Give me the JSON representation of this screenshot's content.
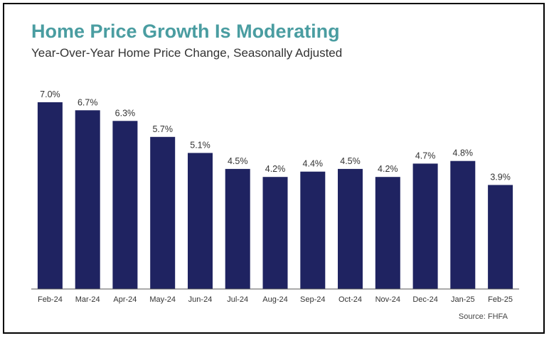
{
  "header": {
    "title": "Home Price Growth Is Moderating",
    "subtitle": "Year-Over-Year Home Price Change, Seasonally Adjusted"
  },
  "footer": {
    "source": "Source: FHFA"
  },
  "colors": {
    "title": "#4a9da1",
    "bar": "#1f2361",
    "axis": "#555555",
    "label": "#333333"
  },
  "chart_data": {
    "type": "bar",
    "title": "Home Price Growth Is Moderating",
    "subtitle": "Year-Over-Year Home Price Change, Seasonally Adjusted",
    "categories": [
      "Feb-24",
      "Mar-24",
      "Apr-24",
      "May-24",
      "Jun-24",
      "Jul-24",
      "Aug-24",
      "Sep-24",
      "Oct-24",
      "Nov-24",
      "Dec-24",
      "Jan-25",
      "Feb-25"
    ],
    "values": [
      7.0,
      6.7,
      6.3,
      5.7,
      5.1,
      4.5,
      4.2,
      4.4,
      4.5,
      4.2,
      4.7,
      4.8,
      3.9
    ],
    "data_labels": [
      "7.0%",
      "6.7%",
      "6.3%",
      "5.7%",
      "5.1%",
      "4.5%",
      "4.2%",
      "4.4%",
      "4.5%",
      "4.2%",
      "4.7%",
      "4.8%",
      "3.9%"
    ],
    "xlabel": "",
    "ylabel": "",
    "ylim": [
      0,
      7.0
    ],
    "grid": false,
    "legend": "none",
    "source": "Source: FHFA"
  }
}
